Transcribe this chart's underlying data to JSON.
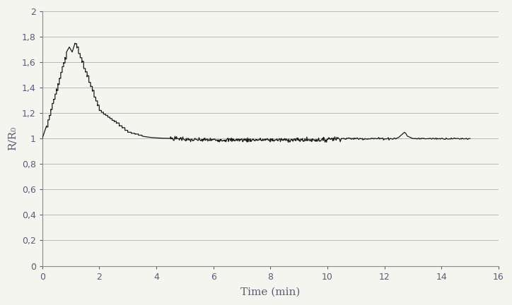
{
  "title": "",
  "xlabel": "Time (min)",
  "ylabel": "R/R₀",
  "xlim": [
    0,
    16
  ],
  "ylim": [
    0,
    2
  ],
  "xticks": [
    0,
    2,
    4,
    6,
    8,
    10,
    12,
    14,
    16
  ],
  "yticks": [
    0,
    0.2,
    0.4,
    0.6,
    0.8,
    1.0,
    1.2,
    1.4,
    1.6,
    1.8,
    2.0
  ],
  "line_color": "#1a1a1a",
  "background_color": "#f5f5f0",
  "grid_color": "#b8b8b8",
  "figsize": [
    7.24,
    4.32
  ],
  "dpi": 100
}
